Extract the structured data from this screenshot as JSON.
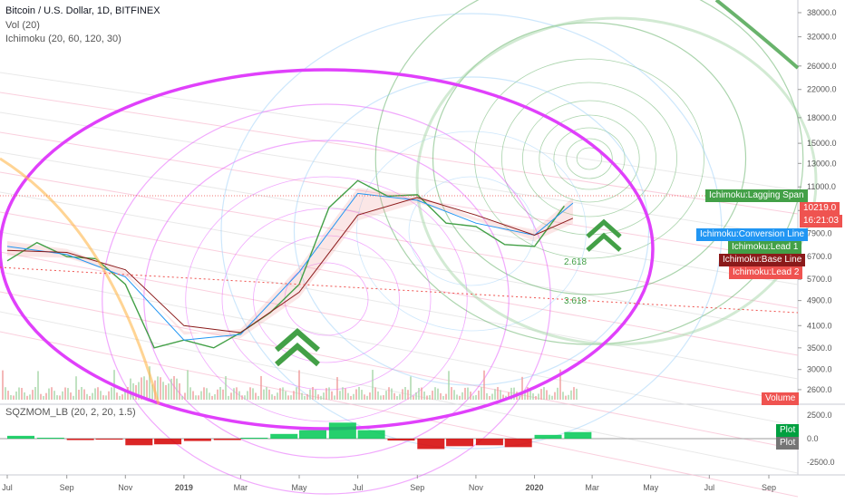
{
  "header": {
    "symbol_line": "Bitcoin / U.S. Dollar, 1D, BITFINEX",
    "vol_line": "Vol (20)",
    "ichimoku_line": "Ichimoku (20, 60, 120, 30)",
    "indicator_line": "SQZMOM_LB (20, 2, 20, 1.5)"
  },
  "colors": {
    "lagging": "#43a047",
    "conversion": "#2196f3",
    "lead1": "#43a047",
    "base": "#8b1a1a",
    "lead2": "#ef5350",
    "price_tag": "#ef5350",
    "ellipse": "#e040fb",
    "mom_up": "#00c853",
    "mom_down": "#d50000"
  },
  "labels": {
    "lagging_span": "Ichimoku:Lagging Span",
    "conversion_line": "Ichimoku:Conversion Line",
    "lead1": "Ichimoku:Lead 1",
    "base_line": "Ichimoku:Base Line",
    "lead2": "Ichimoku:Lead 2",
    "volume": "Volume",
    "price_value": "10219.0",
    "countdown": "16:21:03",
    "plot1": "Plot",
    "plot2": "Plot",
    "fib1": "2.618",
    "fib2": "3.618"
  },
  "chart_data": [
    {
      "type": "line",
      "title": "Bitcoin / U.S. Dollar, 1D, BITFINEX",
      "scale": "log",
      "ylim": [
        2500,
        40000
      ],
      "y_ticks": [
        2600,
        3000,
        3500,
        4100,
        4900,
        5700,
        6700,
        7900,
        9300,
        11000,
        13000,
        15000,
        18000,
        22000,
        26000,
        32000,
        38000
      ],
      "x_ticks": [
        "Jul",
        "Sep",
        "Nov",
        "2019",
        "Mar",
        "May",
        "Jul",
        "Sep",
        "Nov",
        "2020",
        "Mar",
        "May",
        "Jul",
        "Sep"
      ],
      "last_price": 10219.0,
      "series": [
        {
          "name": "Ichimoku:Lagging Span",
          "x": [
            "2018-07-01",
            "2018-08-01",
            "2018-09-01",
            "2018-10-01",
            "2018-11-01",
            "2018-12-01",
            "2019-01-01",
            "2019-02-01",
            "2019-03-01",
            "2019-04-01",
            "2019-05-01",
            "2019-06-01",
            "2019-07-01",
            "2019-08-01",
            "2019-09-01",
            "2019-10-01",
            "2019-11-01",
            "2019-12-01",
            "2020-01-01",
            "2020-02-01"
          ],
          "values": [
            6500,
            7400,
            6700,
            6600,
            5500,
            3500,
            3700,
            3500,
            3900,
            4500,
            5500,
            9500,
            11500,
            10300,
            10400,
            8500,
            8300,
            7300,
            7200,
            9600
          ]
        },
        {
          "name": "Ichimoku:Conversion Line",
          "x": [
            "2018-07-01",
            "2018-09-01",
            "2018-11-01",
            "2019-01-01",
            "2019-03-01",
            "2019-05-01",
            "2019-07-01",
            "2019-09-01",
            "2019-11-01",
            "2020-01-01",
            "2020-02-10"
          ],
          "values": [
            7200,
            6800,
            5800,
            3700,
            3850,
            6000,
            10500,
            10000,
            8500,
            7800,
            9800
          ]
        },
        {
          "name": "Ichimoku:Base Line",
          "x": [
            "2018-07-01",
            "2018-09-01",
            "2018-11-01",
            "2019-01-01",
            "2019-03-01",
            "2019-05-01",
            "2019-07-01",
            "2019-09-01",
            "2019-11-01",
            "2020-01-01",
            "2020-02-10"
          ],
          "values": [
            7000,
            6900,
            6100,
            4100,
            3900,
            5200,
            9000,
            10200,
            9000,
            7800,
            8800
          ]
        }
      ]
    },
    {
      "type": "bar",
      "title": "SQZMOM_LB (20, 2, 20, 1.5)",
      "ylim": [
        -2500,
        2500
      ],
      "y_ticks": [
        -2500,
        0,
        2500
      ],
      "x": [
        "2018-07",
        "2018-08",
        "2018-09",
        "2018-10",
        "2018-11",
        "2018-12",
        "2019-01",
        "2019-02",
        "2019-03",
        "2019-04",
        "2019-05",
        "2019-06",
        "2019-07",
        "2019-08",
        "2019-09",
        "2019-10",
        "2019-11",
        "2019-12",
        "2020-01",
        "2020-02"
      ],
      "values": [
        300,
        100,
        -150,
        -100,
        -700,
        -600,
        -250,
        -150,
        100,
        500,
        900,
        1700,
        900,
        -200,
        -1100,
        -800,
        -700,
        -900,
        400,
        700
      ]
    }
  ]
}
